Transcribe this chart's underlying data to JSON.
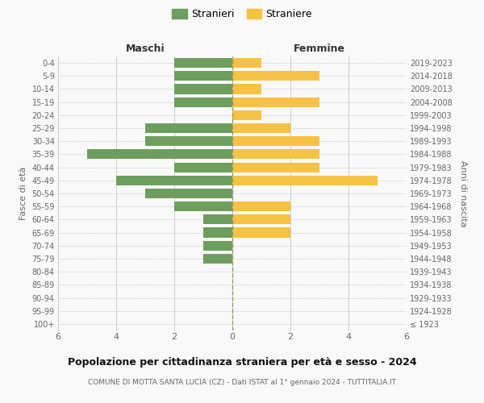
{
  "age_groups": [
    "100+",
    "95-99",
    "90-94",
    "85-89",
    "80-84",
    "75-79",
    "70-74",
    "65-69",
    "60-64",
    "55-59",
    "50-54",
    "45-49",
    "40-44",
    "35-39",
    "30-34",
    "25-29",
    "20-24",
    "15-19",
    "10-14",
    "5-9",
    "0-4"
  ],
  "birth_years": [
    "≤ 1923",
    "1924-1928",
    "1929-1933",
    "1934-1938",
    "1939-1943",
    "1944-1948",
    "1949-1953",
    "1954-1958",
    "1959-1963",
    "1964-1968",
    "1969-1973",
    "1974-1978",
    "1979-1983",
    "1984-1988",
    "1989-1993",
    "1994-1998",
    "1999-2003",
    "2004-2008",
    "2009-2013",
    "2014-2018",
    "2019-2023"
  ],
  "males": [
    0,
    0,
    0,
    0,
    0,
    1,
    1,
    1,
    1,
    2,
    3,
    4,
    2,
    5,
    3,
    3,
    0,
    2,
    2,
    2,
    2
  ],
  "females": [
    0,
    0,
    0,
    0,
    0,
    0,
    0,
    2,
    2,
    2,
    0,
    5,
    3,
    3,
    3,
    2,
    1,
    3,
    1,
    3,
    1
  ],
  "male_color": "#6e9e5e",
  "female_color": "#f5c244",
  "background_color": "#f9f9f9",
  "grid_color": "#cccccc",
  "title": "Popolazione per cittadinanza straniera per età e sesso - 2024",
  "subtitle": "COMUNE DI MOTTA SANTA LUCIA (CZ) - Dati ISTAT al 1° gennaio 2024 - TUTTITALIA.IT",
  "xlabel_left": "Maschi",
  "xlabel_right": "Femmine",
  "ylabel_left": "Fasce di età",
  "ylabel_right": "Anni di nascita",
  "legend_male": "Stranieri",
  "legend_female": "Straniere",
  "xlim": 6,
  "bar_height": 0.75
}
